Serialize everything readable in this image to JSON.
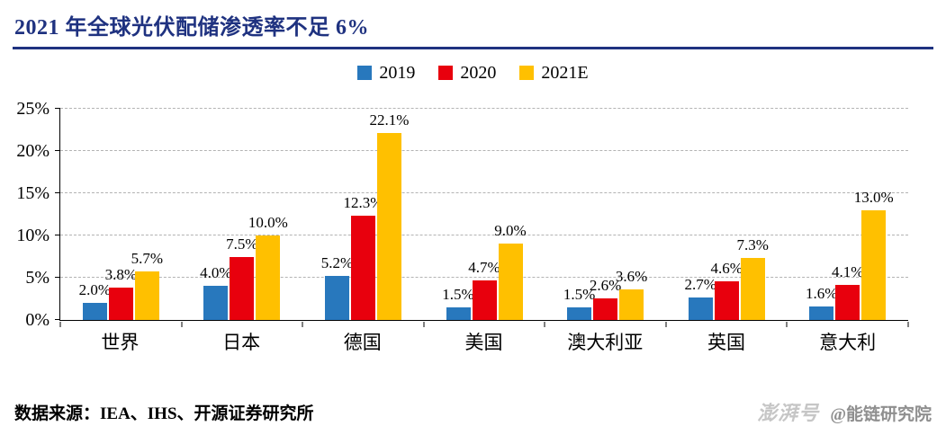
{
  "page": {
    "title": "2021 年全球光伏配储渗透率不足 6%",
    "accent_color": "#1F3280",
    "source_note": "数据来源：IEA、IHS、开源证券研究所",
    "watermark": {
      "brand": "澎湃号",
      "account": "@能链研究院"
    }
  },
  "chart_data": {
    "type": "bar",
    "title": "2021 年全球光伏配储渗透率不足 6%",
    "categories": [
      "世界",
      "日本",
      "德国",
      "美国",
      "澳大利亚",
      "英国",
      "意大利"
    ],
    "series": [
      {
        "name": "2019",
        "color": "#2878BD",
        "values": [
          2.0,
          4.0,
          5.2,
          1.5,
          1.5,
          2.7,
          1.6
        ]
      },
      {
        "name": "2020",
        "color": "#E8000D",
        "values": [
          3.8,
          7.5,
          12.3,
          4.7,
          2.6,
          4.6,
          4.1
        ]
      },
      {
        "name": "2021E",
        "color": "#FFC000",
        "values": [
          5.7,
          10.0,
          22.1,
          9.0,
          3.6,
          7.3,
          13.0
        ]
      }
    ],
    "ylim": [
      0,
      25
    ],
    "ytick_step": 5,
    "ytick_labels": [
      "0%",
      "5%",
      "10%",
      "15%",
      "20%",
      "25%"
    ],
    "value_label_suffix": "%",
    "legend_position": "top-center",
    "grid": "dashed-horizontal"
  }
}
